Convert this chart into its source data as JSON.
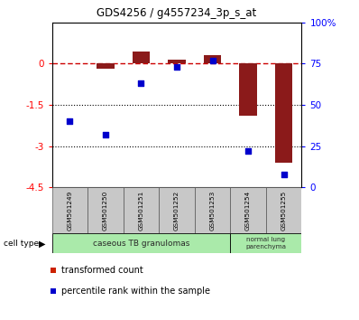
{
  "title": "GDS4256 / g4557234_3p_s_at",
  "samples": [
    "GSM501249",
    "GSM501250",
    "GSM501251",
    "GSM501252",
    "GSM501253",
    "GSM501254",
    "GSM501255"
  ],
  "transformed_count": [
    0.0,
    -0.2,
    0.45,
    0.15,
    0.3,
    -1.9,
    -3.6
  ],
  "percentile_rank": [
    40,
    32,
    63,
    73,
    77,
    22,
    8
  ],
  "ylim_left": [
    -4.5,
    1.5
  ],
  "ylim_right": [
    0,
    100
  ],
  "yticks_left": [
    0,
    -1.5,
    -3,
    -4.5
  ],
  "yticks_right": [
    0,
    25,
    50,
    75,
    100
  ],
  "ytick_labels_left": [
    "0",
    "-1.5",
    "-3",
    "-4.5"
  ],
  "ytick_labels_right": [
    "0",
    "25",
    "50",
    "75",
    "100%"
  ],
  "hlines": [
    -1.5,
    -3.0
  ],
  "bar_color": "#8B1A1A",
  "dot_color": "#0000CC",
  "zero_line_color": "#CC0000",
  "legend_items": [
    {
      "label": "transformed count",
      "color": "#CC2200"
    },
    {
      "label": "percentile rank within the sample",
      "color": "#0000CC"
    }
  ],
  "cell_type_label": "cell type",
  "plot_bg_color": "#ffffff",
  "sample_box_color": "#c8c8c8",
  "group1_color": "#aaeaaa",
  "group2_color": "#aaeaaa"
}
